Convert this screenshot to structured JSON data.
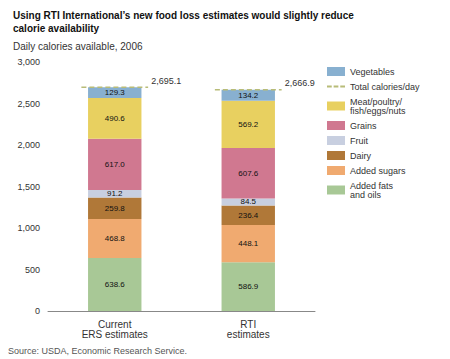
{
  "chart_data": {
    "type": "bar",
    "stacked": true,
    "title": "Using RTI International’s new food loss estimates would slightly reduce\ncalorie availability",
    "subtitle": "Daily calories available, 2006",
    "source": "Source: USDA, Economic Research Service.",
    "categories": [
      "Current\nERS estimates",
      "RTI\nestimates"
    ],
    "series": [
      {
        "name": "Added fats\nand oils",
        "color": "#a8c896",
        "values": [
          638.6,
          586.9
        ]
      },
      {
        "name": "Added sugars",
        "color": "#f0aa70",
        "values": [
          468.8,
          448.1
        ]
      },
      {
        "name": "Dairy",
        "color": "#b07838",
        "values": [
          259.8,
          236.4
        ]
      },
      {
        "name": "Fruit",
        "color": "#c8cfe0",
        "values": [
          91.2,
          84.5
        ]
      },
      {
        "name": "Grains",
        "color": "#d07890",
        "values": [
          617.0,
          607.6
        ],
        "value_labels": [
          "617.0",
          "607.6"
        ]
      },
      {
        "name": "Meat/poultry/\nfish/eggs/nuts",
        "color": "#e8d060",
        "values": [
          490.6,
          569.2
        ]
      },
      {
        "name": "Vegetables",
        "color": "#88b0d0",
        "values": [
          129.3,
          134.2
        ]
      },
      {
        "name": "Total calories/day",
        "type": "line",
        "line_style": "dashed",
        "color": "#b8bc78",
        "values": [
          2695.1,
          2666.9
        ],
        "value_labels": [
          "2,695.1",
          "2,666.9"
        ]
      }
    ],
    "ylim": [
      0,
      3000
    ],
    "yticks": [
      0,
      500,
      {
        "value": 1000,
        "label": "1,000"
      },
      {
        "value": 1500,
        "label": "1,500"
      },
      {
        "value": 2000,
        "label": "2,000"
      },
      {
        "value": 2500,
        "label": "2,500"
      },
      {
        "value": 3000,
        "label": "3,000"
      }
    ],
    "grid": false,
    "data_labels": true,
    "legend": "upper right"
  }
}
